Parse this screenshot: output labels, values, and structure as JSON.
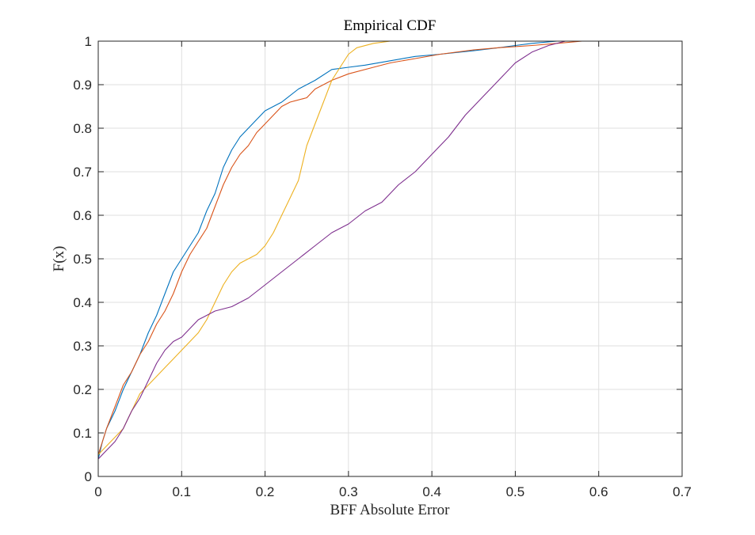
{
  "chart_data": {
    "type": "line",
    "title": "Empirical CDF",
    "xlabel": "BFF Absolute Error",
    "ylabel": "F(x)",
    "xlim": [
      0,
      0.7
    ],
    "ylim": [
      0,
      1
    ],
    "xticks": [
      "0",
      "0.1",
      "0.2",
      "0.3",
      "0.4",
      "0.5",
      "0.6",
      "0.7"
    ],
    "yticks": [
      "0",
      "0.1",
      "0.2",
      "0.3",
      "0.4",
      "0.5",
      "0.6",
      "0.7",
      "0.8",
      "0.9",
      "1"
    ],
    "grid": true,
    "legend": "none",
    "series": [
      {
        "color": "#0072BD",
        "points": [
          [
            0,
            0.04
          ],
          [
            0.005,
            0.08
          ],
          [
            0.01,
            0.11
          ],
          [
            0.02,
            0.15
          ],
          [
            0.03,
            0.2
          ],
          [
            0.04,
            0.24
          ],
          [
            0.05,
            0.28
          ],
          [
            0.06,
            0.33
          ],
          [
            0.07,
            0.37
          ],
          [
            0.08,
            0.42
          ],
          [
            0.09,
            0.47
          ],
          [
            0.1,
            0.5
          ],
          [
            0.11,
            0.53
          ],
          [
            0.12,
            0.56
          ],
          [
            0.13,
            0.61
          ],
          [
            0.14,
            0.65
          ],
          [
            0.15,
            0.71
          ],
          [
            0.16,
            0.75
          ],
          [
            0.17,
            0.78
          ],
          [
            0.18,
            0.8
          ],
          [
            0.19,
            0.82
          ],
          [
            0.2,
            0.84
          ],
          [
            0.22,
            0.86
          ],
          [
            0.24,
            0.89
          ],
          [
            0.26,
            0.91
          ],
          [
            0.28,
            0.935
          ],
          [
            0.3,
            0.94
          ],
          [
            0.32,
            0.945
          ],
          [
            0.35,
            0.955
          ],
          [
            0.38,
            0.965
          ],
          [
            0.41,
            0.97
          ],
          [
            0.45,
            0.978
          ],
          [
            0.48,
            0.985
          ],
          [
            0.5,
            0.99
          ],
          [
            0.52,
            0.995
          ],
          [
            0.55,
            1.0
          ],
          [
            0.615,
            1.0
          ]
        ]
      },
      {
        "color": "#D95319",
        "points": [
          [
            0,
            0.05
          ],
          [
            0.005,
            0.08
          ],
          [
            0.01,
            0.11
          ],
          [
            0.02,
            0.16
          ],
          [
            0.03,
            0.21
          ],
          [
            0.04,
            0.24
          ],
          [
            0.05,
            0.28
          ],
          [
            0.06,
            0.31
          ],
          [
            0.07,
            0.35
          ],
          [
            0.08,
            0.38
          ],
          [
            0.09,
            0.42
          ],
          [
            0.1,
            0.47
          ],
          [
            0.11,
            0.51
          ],
          [
            0.12,
            0.54
          ],
          [
            0.13,
            0.57
          ],
          [
            0.14,
            0.62
          ],
          [
            0.15,
            0.67
          ],
          [
            0.16,
            0.71
          ],
          [
            0.17,
            0.74
          ],
          [
            0.18,
            0.76
          ],
          [
            0.19,
            0.79
          ],
          [
            0.2,
            0.81
          ],
          [
            0.21,
            0.83
          ],
          [
            0.22,
            0.85
          ],
          [
            0.23,
            0.86
          ],
          [
            0.25,
            0.87
          ],
          [
            0.26,
            0.89
          ],
          [
            0.28,
            0.91
          ],
          [
            0.3,
            0.925
          ],
          [
            0.33,
            0.94
          ],
          [
            0.35,
            0.95
          ],
          [
            0.38,
            0.96
          ],
          [
            0.41,
            0.97
          ],
          [
            0.45,
            0.98
          ],
          [
            0.48,
            0.985
          ],
          [
            0.52,
            0.99
          ],
          [
            0.55,
            0.995
          ],
          [
            0.58,
            1.0
          ]
        ]
      },
      {
        "color": "#EDB120",
        "points": [
          [
            0,
            0.05
          ],
          [
            0.01,
            0.07
          ],
          [
            0.02,
            0.09
          ],
          [
            0.03,
            0.11
          ],
          [
            0.04,
            0.15
          ],
          [
            0.05,
            0.19
          ],
          [
            0.06,
            0.21
          ],
          [
            0.07,
            0.23
          ],
          [
            0.08,
            0.25
          ],
          [
            0.09,
            0.27
          ],
          [
            0.1,
            0.29
          ],
          [
            0.11,
            0.31
          ],
          [
            0.12,
            0.33
          ],
          [
            0.13,
            0.36
          ],
          [
            0.14,
            0.4
          ],
          [
            0.15,
            0.44
          ],
          [
            0.16,
            0.47
          ],
          [
            0.17,
            0.49
          ],
          [
            0.19,
            0.51
          ],
          [
            0.2,
            0.53
          ],
          [
            0.21,
            0.56
          ],
          [
            0.22,
            0.6
          ],
          [
            0.23,
            0.64
          ],
          [
            0.24,
            0.68
          ],
          [
            0.25,
            0.76
          ],
          [
            0.26,
            0.81
          ],
          [
            0.27,
            0.86
          ],
          [
            0.28,
            0.91
          ],
          [
            0.29,
            0.94
          ],
          [
            0.3,
            0.97
          ],
          [
            0.31,
            0.985
          ],
          [
            0.33,
            0.995
          ],
          [
            0.35,
            1.0
          ]
        ]
      },
      {
        "color": "#7E2F8E",
        "points": [
          [
            0,
            0.04
          ],
          [
            0.01,
            0.06
          ],
          [
            0.02,
            0.08
          ],
          [
            0.03,
            0.11
          ],
          [
            0.04,
            0.15
          ],
          [
            0.05,
            0.18
          ],
          [
            0.06,
            0.22
          ],
          [
            0.07,
            0.26
          ],
          [
            0.08,
            0.29
          ],
          [
            0.09,
            0.31
          ],
          [
            0.1,
            0.32
          ],
          [
            0.11,
            0.34
          ],
          [
            0.12,
            0.36
          ],
          [
            0.14,
            0.38
          ],
          [
            0.16,
            0.39
          ],
          [
            0.18,
            0.41
          ],
          [
            0.2,
            0.44
          ],
          [
            0.22,
            0.47
          ],
          [
            0.24,
            0.5
          ],
          [
            0.26,
            0.53
          ],
          [
            0.28,
            0.56
          ],
          [
            0.3,
            0.58
          ],
          [
            0.32,
            0.61
          ],
          [
            0.34,
            0.63
          ],
          [
            0.36,
            0.67
          ],
          [
            0.38,
            0.7
          ],
          [
            0.4,
            0.74
          ],
          [
            0.42,
            0.78
          ],
          [
            0.44,
            0.83
          ],
          [
            0.46,
            0.87
          ],
          [
            0.48,
            0.91
          ],
          [
            0.5,
            0.95
          ],
          [
            0.52,
            0.975
          ],
          [
            0.54,
            0.99
          ],
          [
            0.56,
            1.0
          ],
          [
            0.6,
            1.0
          ]
        ]
      }
    ]
  }
}
